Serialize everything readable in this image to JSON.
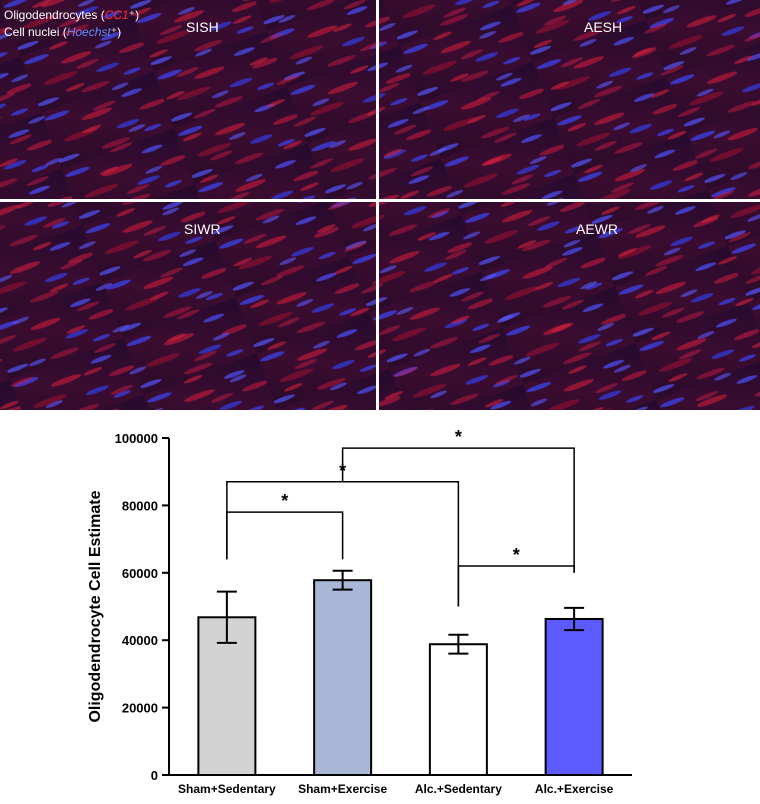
{
  "legend": {
    "line1_prefix": "Oligodendrocytes (",
    "line1_marker": "CC1",
    "line1_suffix": "⁺)",
    "line2_prefix": "Cell nuclei (",
    "line2_marker": "Hoechst",
    "line2_suffix": "⁺)",
    "marker_color_red": "#ff3030",
    "marker_color_blue": "#6a8cff"
  },
  "panels": [
    {
      "label": "SISH"
    },
    {
      "label": "AESH"
    },
    {
      "label": "SIWR"
    },
    {
      "label": "AEWR"
    }
  ],
  "chart_data": {
    "type": "bar",
    "categories": [
      "Sham+Sedentary",
      "Sham+Exercise",
      "Alc.+Sedentary",
      "Alc.+Exercise"
    ],
    "values": [
      46800,
      57800,
      38800,
      46300
    ],
    "errors": [
      7600,
      2800,
      2800,
      3300
    ],
    "colors": [
      "#d3d3d3",
      "#aab6d6",
      "#ffffff",
      "#5b5bff"
    ],
    "ylabel": "Oligodendrocyte Cell Estimate",
    "ylim": [
      0,
      100000
    ],
    "yticks": [
      0,
      20000,
      40000,
      60000,
      80000,
      100000
    ],
    "significance": [
      {
        "from": 0,
        "to": 1,
        "label": "*"
      },
      {
        "from": 0,
        "to": 2,
        "label": "*"
      },
      {
        "from": 2,
        "to": 3,
        "label": "*"
      },
      {
        "from": 1,
        "to": 3,
        "label": "*"
      }
    ]
  }
}
